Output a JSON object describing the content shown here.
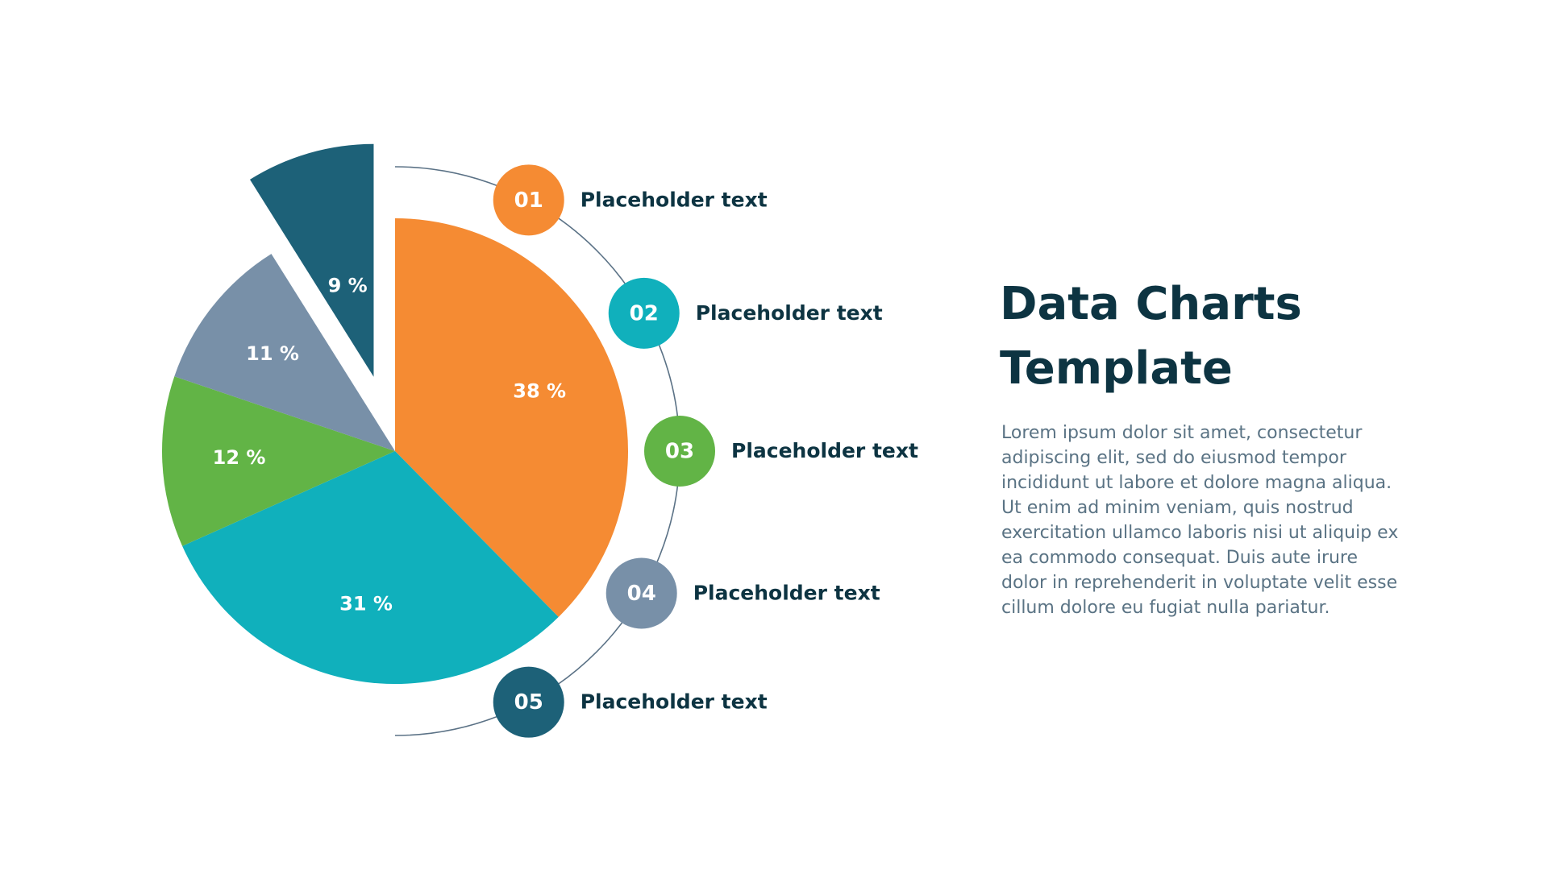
{
  "chart_data": {
    "type": "pie",
    "title": "Data Charts Template",
    "description": "Lorem ipsum dolor sit amet, consectetur adipiscing elit, sed do eiusmod tempor incididunt ut labore et dolore magna aliqua. Ut enim ad minim veniam, quis nostrud exercitation ullamco laboris nisi ut aliquip ex ea commodo consequat. Duis aute irure dolor in reprehenderit in voluptate velit esse cillum dolore eu fugiat nulla pariatur.",
    "markers": [
      "01",
      "02",
      "03",
      "04",
      "05"
    ],
    "categories": [
      "Placeholder text",
      "Placeholder text",
      "Placeholder text",
      "Placeholder text",
      "Placeholder text"
    ],
    "values": [
      38,
      31,
      12,
      11,
      9
    ],
    "value_labels": [
      "38 %",
      "31 %",
      "12 %",
      "11 %",
      "9 %"
    ],
    "colors": [
      "#f58b33",
      "#10b0bc",
      "#62b446",
      "#7890a8",
      "#1d6178"
    ],
    "explode": [
      false,
      false,
      false,
      false,
      true
    ]
  }
}
